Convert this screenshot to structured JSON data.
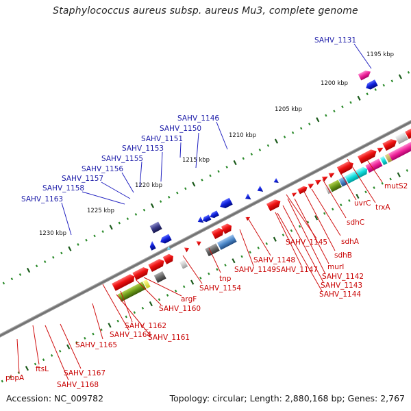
{
  "title": "Staphylococcus aureus subsp. aureus Mu3, complete genome",
  "accession": "Accession: NC_009782",
  "summary": "Topology: circular; Length: 2,880,168 bp; Genes: 2,767",
  "kbp_labels": [
    "1195 kbp",
    "1200 kbp",
    "1205 kbp",
    "1210 kbp",
    "1215 kbp",
    "1220 kbp",
    "1225 kbp",
    "1230 kbp"
  ],
  "top_labels": [
    "SAHV_1131",
    "SAHV_1146",
    "SAHV_1150",
    "SAHV_1151",
    "SAHV_1153",
    "SAHV_1155",
    "SAHV_1156",
    "SAHV_1157",
    "SAHV_1158",
    "SAHV_1163"
  ],
  "bottom_labels": [
    "mutS2",
    "trxA",
    "uvrC",
    "sdhC",
    "sdhA",
    "sdhB",
    "SAHV_1145",
    "murI",
    "SAHV_1148",
    "SAHV_1149",
    "SAHV_1147",
    "SAHV_1142",
    "SAHV_1143",
    "SAHV_1144",
    "tnp",
    "SAHV_1154",
    "argF",
    "SAHV_1160",
    "SAHV_1162",
    "SAHV_1164",
    "SAHV_1161",
    "SAHV_1165",
    "SAHV_1167",
    "SAHV_1168",
    "ftsL",
    "pbpA"
  ],
  "colors": {
    "forward_gene": "#ee1111",
    "reverse_gene": "#1122dd",
    "backbone": "#777777",
    "tick_minor": "#2a8a2a",
    "tick_major": "#1a5a1a",
    "label_red": "#c80000",
    "label_blue": "#1a1aa8"
  }
}
